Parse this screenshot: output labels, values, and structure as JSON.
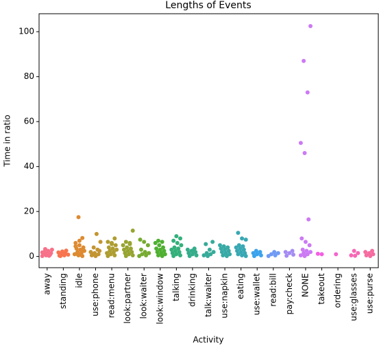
{
  "chart_data": {
    "type": "strip",
    "title": "Lengths of Events",
    "x_label": "Activity",
    "y_label": "Time in ratio",
    "categories": [
      "away",
      "standing",
      "idle",
      "use:phone",
      "read:menu",
      "look:partner",
      "look:waiter",
      "look:window",
      "talking",
      "drinking",
      "talk:waiter",
      "use:napkin",
      "eating",
      "use:wallet",
      "read:bill",
      "pay:check",
      "NONE",
      "takeout",
      "ordering",
      "use:glasses",
      "use:purse"
    ],
    "colors": [
      "#f77189",
      "#f7754f",
      "#dd8a31",
      "#c39532",
      "#ae9d31",
      "#97a431",
      "#77ab31",
      "#4fb031",
      "#33b07a",
      "#35ad8b",
      "#36ab99",
      "#37aaa5",
      "#38a8b3",
      "#3ba3ec",
      "#6e9af4",
      "#a48cf4",
      "#cc7af4",
      "#f45fe2",
      "#f565cc",
      "#f668b5",
      "#f66ba0"
    ],
    "values": [
      [
        0.2,
        0.5,
        0.8,
        1,
        1.2,
        1.5,
        2,
        2.5,
        3,
        3.3,
        0.3,
        1.8
      ],
      [
        0.2,
        0.5,
        0.8,
        1,
        1.4,
        1.8,
        2.2,
        2.6,
        0.4,
        1.1
      ],
      [
        17.5,
        8.2,
        6,
        5,
        4,
        3.5,
        3,
        2.5,
        2,
        1.5,
        1,
        0.5,
        0.2,
        4.5,
        7,
        2.8,
        1.2,
        0.8
      ],
      [
        10,
        6.5,
        4,
        3,
        2,
        1.5,
        1,
        0.5,
        0.2,
        2.5,
        0.8
      ],
      [
        8,
        6.5,
        5.5,
        5,
        4,
        3.5,
        3,
        2.5,
        2,
        1.5,
        1,
        0.5,
        0.2,
        6
      ],
      [
        11.5,
        6.5,
        6,
        5,
        4,
        3.5,
        3,
        2.5,
        2,
        1.5,
        1,
        0.5,
        0.2,
        5.5
      ],
      [
        7.5,
        6.5,
        5,
        3,
        2,
        1.5,
        1,
        0.5,
        0.2
      ],
      [
        7,
        6.5,
        6,
        5,
        4,
        3.5,
        3,
        2.5,
        2,
        1.5,
        1,
        0.5,
        0.2
      ],
      [
        9,
        8,
        7,
        6,
        5,
        4,
        3.5,
        3,
        2.5,
        2,
        1.5,
        1,
        0.5,
        0.2
      ],
      [
        3.5,
        3,
        2.5,
        2,
        1.5,
        1,
        0.5,
        0.2,
        2.8
      ],
      [
        6.5,
        5.5,
        3,
        2,
        1.5,
        1,
        0.5,
        0.2
      ],
      [
        5,
        4.5,
        4,
        3.5,
        3,
        2.5,
        2,
        1.5,
        1,
        0.5,
        0.2
      ],
      [
        10.5,
        8,
        7.5,
        5,
        4.5,
        4,
        3.5,
        3,
        2.5,
        2,
        1.5,
        1,
        0.5,
        0.2
      ],
      [
        2.5,
        2,
        1.5,
        1,
        0.5,
        0.2
      ],
      [
        2,
        1.5,
        1,
        0.5,
        0.2
      ],
      [
        2.5,
        2,
        1.5,
        0.8,
        0.3
      ],
      [
        102.5,
        87,
        73,
        50.5,
        46,
        16.5,
        8,
        6.5,
        5,
        3,
        2.5,
        2,
        1.5,
        1,
        0.5,
        0.2
      ],
      [
        1.2,
        1
      ],
      [
        1
      ],
      [
        2.5,
        1.5,
        0.5,
        0.3
      ],
      [
        2.5,
        2,
        1.5,
        1,
        0.5,
        0.2
      ]
    ],
    "ylim": [
      -5,
      108
    ],
    "yticks": [
      0,
      20,
      40,
      60,
      80,
      100
    ]
  }
}
